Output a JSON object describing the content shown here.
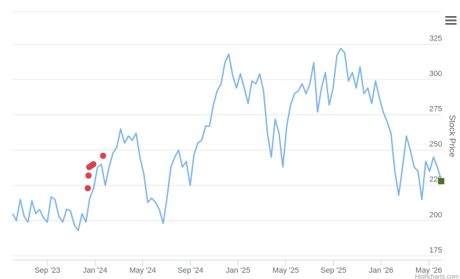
{
  "chart_data": {
    "type": "line",
    "y_axis_label": "Stock Price",
    "credit": "Highcharts.com",
    "xlim": [
      2023.423,
      2026.42
    ],
    "ylim": [
      172,
      348
    ],
    "yticks": [
      175,
      200,
      225,
      250,
      275,
      300,
      325
    ],
    "xticks": [
      {
        "value": 2023.667,
        "label": "Sep '23"
      },
      {
        "value": 2024.0,
        "label": "Jan '24"
      },
      {
        "value": 2024.333,
        "label": "May '24"
      },
      {
        "value": 2024.667,
        "label": "Sep '24"
      },
      {
        "value": 2025.0,
        "label": "Jan '25"
      },
      {
        "value": 2025.333,
        "label": "May '25"
      },
      {
        "value": 2025.667,
        "label": "Sep '25"
      },
      {
        "value": 2026.0,
        "label": "Jan '26"
      },
      {
        "value": 2026.333,
        "label": "May '26"
      }
    ],
    "grid": true,
    "series": [
      {
        "color": "#7cb5ec",
        "x": [
          2023.423,
          2023.45,
          2023.477,
          2023.504,
          2023.531,
          2023.558,
          2023.585,
          2023.612,
          2023.639,
          2023.666,
          2023.693,
          2023.72,
          2023.747,
          2023.774,
          2023.801,
          2023.828,
          2023.855,
          2023.882,
          2023.909,
          2023.936,
          2023.963,
          2023.99,
          2024.017,
          2024.044,
          2024.071,
          2024.098,
          2024.125,
          2024.152,
          2024.179,
          2024.206,
          2024.233,
          2024.26,
          2024.287,
          2024.314,
          2024.341,
          2024.368,
          2024.395,
          2024.422,
          2024.449,
          2024.476,
          2024.503,
          2024.53,
          2024.557,
          2024.584,
          2024.611,
          2024.638,
          2024.665,
          2024.692,
          2024.719,
          2024.746,
          2024.773,
          2024.8,
          2024.827,
          2024.854,
          2024.881,
          2024.908,
          2024.935,
          2024.962,
          2024.989,
          2025.016,
          2025.043,
          2025.07,
          2025.097,
          2025.124,
          2025.151,
          2025.178,
          2025.205,
          2025.232,
          2025.259,
          2025.286,
          2025.313,
          2025.34,
          2025.367,
          2025.394,
          2025.421,
          2025.448,
          2025.475,
          2025.502,
          2025.529,
          2025.556,
          2025.583,
          2025.61,
          2025.637,
          2025.664,
          2025.691,
          2025.718,
          2025.745,
          2025.772,
          2025.799,
          2025.826,
          2025.853,
          2025.88,
          2025.907,
          2025.934,
          2025.961,
          2025.988,
          2026.015,
          2026.042,
          2026.069,
          2026.096,
          2026.123,
          2026.15,
          2026.177,
          2026.204,
          2026.231,
          2026.258,
          2026.285,
          2026.312,
          2026.339,
          2026.366,
          2026.393,
          2026.42
        ],
        "values": [
          205,
          200,
          215,
          203,
          199,
          214,
          205,
          208,
          202,
          199,
          217,
          215,
          203,
          199,
          208,
          207,
          197,
          193,
          205,
          199,
          216,
          223,
          238,
          240,
          225,
          238,
          248,
          252,
          265,
          255,
          260,
          257,
          262,
          245,
          233,
          213,
          216,
          213,
          208,
          198,
          216,
          238,
          245,
          250,
          238,
          242,
          225,
          247,
          255,
          257,
          267,
          267,
          282,
          292,
          297,
          312,
          318,
          303,
          294,
          304,
          294,
          283,
          299,
          297,
          304,
          292,
          262,
          245,
          272,
          262,
          238,
          267,
          282,
          290,
          292,
          297,
          290,
          297,
          312,
          277,
          294,
          305,
          282,
          294,
          317,
          322,
          319,
          299,
          305,
          294,
          309,
          290,
          294,
          283,
          299,
          287,
          277,
          270,
          262,
          235,
          218,
          238,
          260,
          250,
          238,
          235,
          215,
          242,
          235,
          245,
          238,
          229
        ]
      }
    ],
    "points": {
      "color": "#d9444c",
      "x": [
        2023.949,
        2023.954,
        2023.959,
        2023.974,
        2023.988,
        2024.056
      ],
      "values": [
        223,
        232,
        238,
        239,
        240,
        246
      ]
    },
    "end_marker": {
      "color": "#556b2f",
      "x": 2026.42,
      "value": 228
    }
  }
}
